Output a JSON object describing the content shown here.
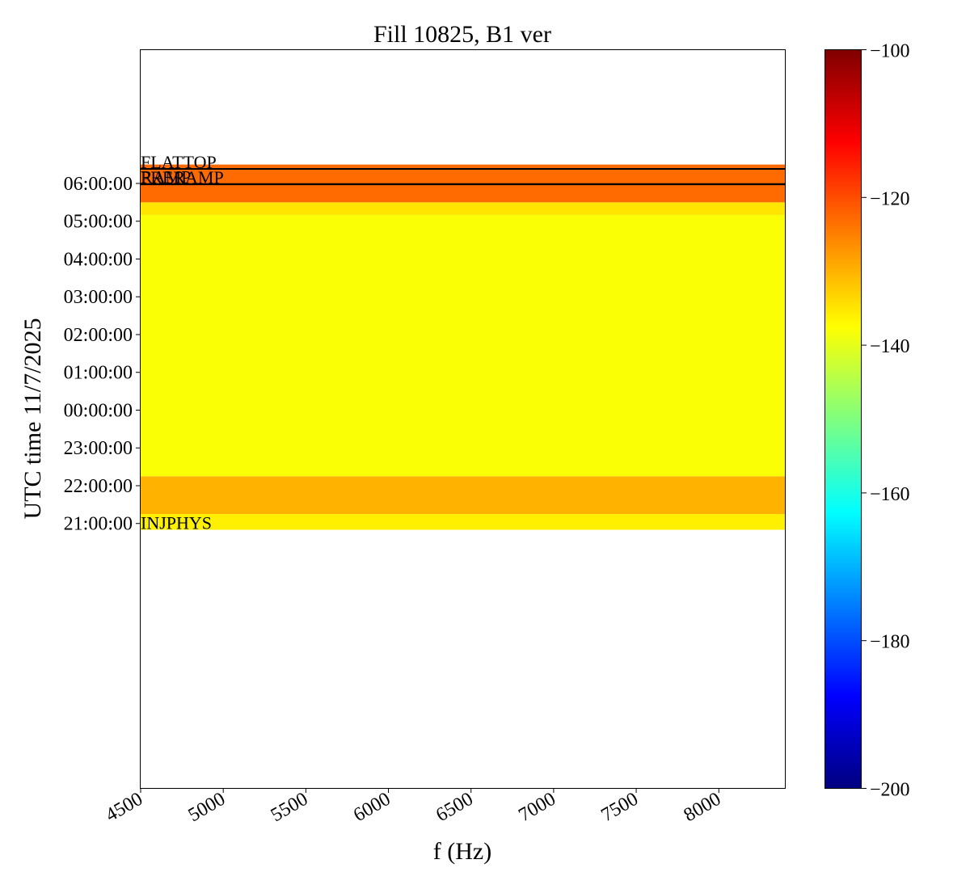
{
  "chart_data": {
    "type": "heatmap",
    "title": "Fill 10825, B1 ver",
    "xlabel": "f (Hz)",
    "ylabel": "UTC time 11/7/2025",
    "xlim": [
      4500,
      8400
    ],
    "x_ticks": [
      "4500",
      "5000",
      "5500",
      "6000",
      "6500",
      "7000",
      "7500",
      "8000"
    ],
    "y_ticks": [
      "21:00:00",
      "22:00:00",
      "23:00:00",
      "00:00:00",
      "01:00:00",
      "02:00:00",
      "03:00:00",
      "04:00:00",
      "05:00:00",
      "06:00:00"
    ],
    "colorbar": {
      "range": [
        -200,
        -100
      ],
      "colormap": "jet",
      "ticks": [
        "−100",
        "−120",
        "−140",
        "−160",
        "−180",
        "−200"
      ]
    },
    "phase_markers": [
      {
        "label": "FLATTOP",
        "time": "06:23:00"
      },
      {
        "label": "RAMP",
        "time": "05:59:00"
      },
      {
        "label": "PRERAMP",
        "time": "05:58:30"
      },
      {
        "label": "INJPHYS",
        "time": "20:50:00"
      }
    ],
    "regions": [
      {
        "from": "20:50",
        "to": "21:15",
        "level_db": -136
      },
      {
        "from": "21:15",
        "to": "22:15",
        "level_db": -130
      },
      {
        "from": "22:15",
        "to": "05:10",
        "level_db": -138
      },
      {
        "from": "05:10",
        "to": "05:30",
        "level_db": -135
      },
      {
        "from": "05:30",
        "to": "06:30",
        "level_db": -123
      }
    ]
  }
}
